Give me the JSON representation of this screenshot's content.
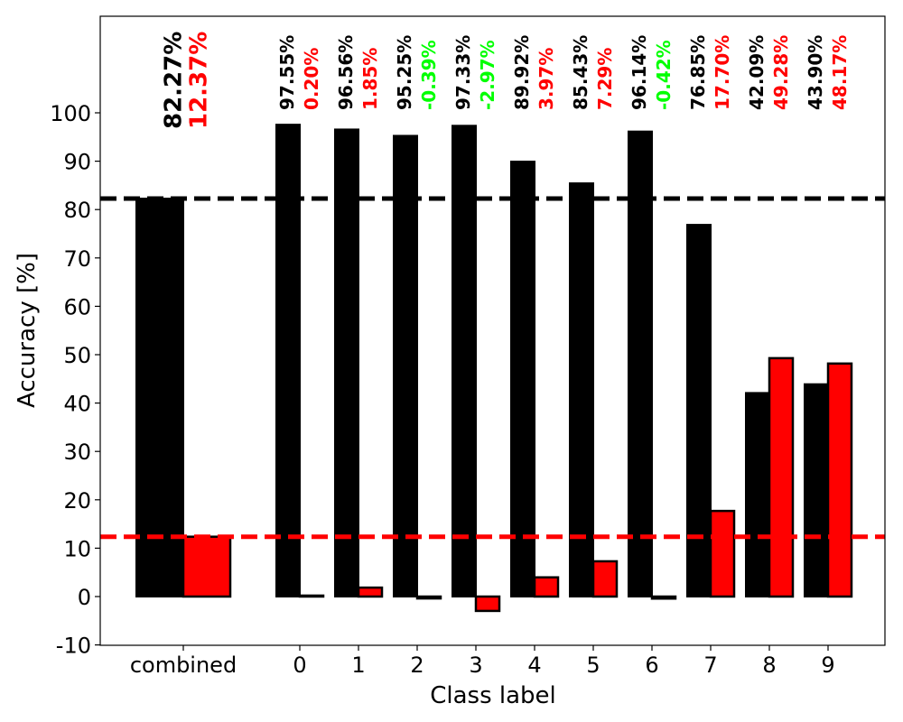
{
  "chart_data": {
    "type": "bar",
    "title": "",
    "xlabel": "Class label",
    "ylabel": "Accuracy [%]",
    "ylim": [
      -10,
      110
    ],
    "yticks": [
      -10,
      0,
      10,
      20,
      30,
      40,
      50,
      60,
      70,
      80,
      90,
      100
    ],
    "grid": false,
    "legend": "none",
    "categories": [
      "combined",
      "0",
      "1",
      "2",
      "3",
      "4",
      "5",
      "6",
      "7",
      "8",
      "9"
    ],
    "series": [
      {
        "color": "#000000",
        "values": [
          82.27,
          97.55,
          96.56,
          95.25,
          97.33,
          89.92,
          85.43,
          96.14,
          76.85,
          42.09,
          43.9
        ],
        "labels": [
          "82.27%",
          "97.55%",
          "96.56%",
          "95.25%",
          "97.33%",
          "89.92%",
          "85.43%",
          "96.14%",
          "76.85%",
          "42.09%",
          "43.90%"
        ]
      },
      {
        "color": "#ff0000",
        "values": [
          12.37,
          0.2,
          1.85,
          -0.39,
          -2.97,
          3.97,
          7.29,
          -0.42,
          17.7,
          49.28,
          48.17
        ],
        "labels": [
          "12.37%",
          "0.20%",
          "1.85%",
          "-0.39%",
          "-2.97%",
          "3.97%",
          "7.29%",
          "-0.42%",
          "17.70%",
          "49.28%",
          "48.17%"
        ],
        "label_colors": [
          "#ff0000",
          "#ff0000",
          "#ff0000",
          "#00ff00",
          "#00ff00",
          "#ff0000",
          "#ff0000",
          "#00ff00",
          "#ff0000",
          "#ff0000",
          "#ff0000"
        ]
      }
    ],
    "reference_lines": [
      {
        "y": 82.27,
        "color": "#000000",
        "style": "dashed"
      },
      {
        "y": 12.37,
        "color": "#ff0000",
        "style": "dashed"
      }
    ]
  }
}
